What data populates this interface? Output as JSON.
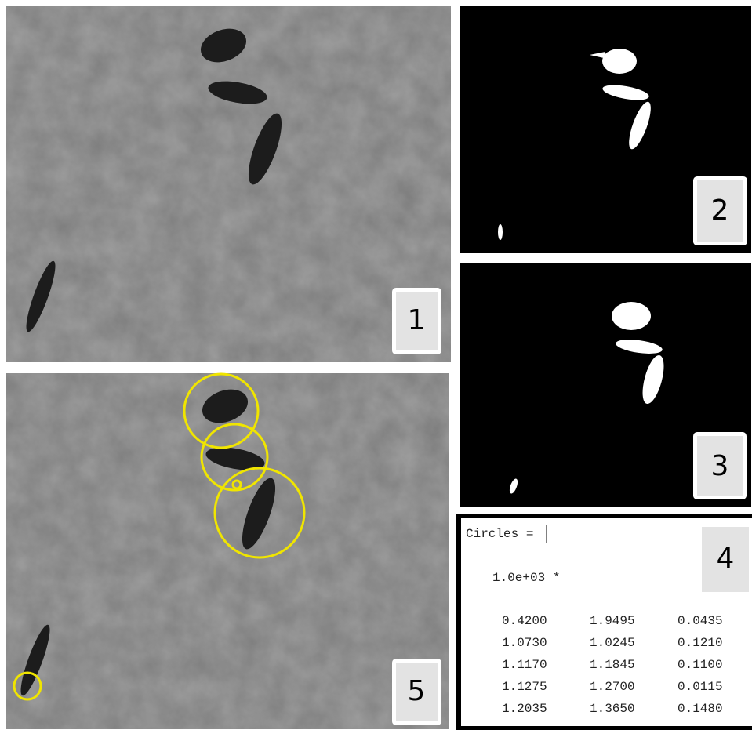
{
  "panels": [
    {
      "label": "1"
    },
    {
      "label": "2"
    },
    {
      "label": "3"
    },
    {
      "label": "4"
    },
    {
      "label": "5"
    }
  ],
  "output": {
    "heading": "Circles =",
    "scale": "1.0e+03 *",
    "rows": [
      [
        "0.4200",
        "1.9495",
        "0.0435"
      ],
      [
        "1.0730",
        "1.0245",
        "0.1210"
      ],
      [
        "1.1170",
        "1.1845",
        "0.1100"
      ],
      [
        "1.1275",
        "1.2700",
        "0.0115"
      ],
      [
        "1.2035",
        "1.3650",
        "0.1480"
      ]
    ]
  }
}
